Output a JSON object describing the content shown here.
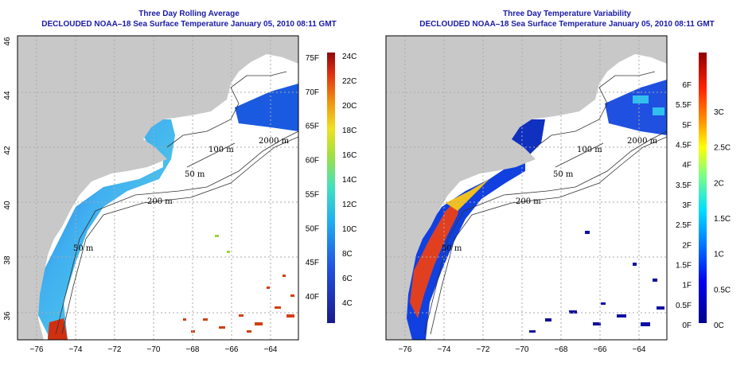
{
  "panels": [
    {
      "title_line1": "Three Day Rolling Average",
      "title_line2": "DECLOUDED NOAA–18 Sea Surface Temperature January 05, 2010 08:11 GMT",
      "colorbar_inner_labels": [
        "75F",
        "70F",
        "65F",
        "60F",
        "55F",
        "50F",
        "45F",
        "40F"
      ],
      "colorbar_outer_labels": [
        "24C",
        "22C",
        "20C",
        "18C",
        "16C",
        "14C",
        "12C",
        "10C",
        "8C",
        "6C",
        "4C"
      ]
    },
    {
      "title_line1": "Three Day Temperature Variability",
      "title_line2": "DECLOUDED NOAA–18 Sea Surface Temperature January 05, 2010 08:11 GMT",
      "colorbar_inner_labels": [
        "6F",
        "5.5F",
        "5F",
        "4.5F",
        "4F",
        "3.5F",
        "3F",
        "2.5F",
        "2F",
        "1.5F",
        "1F",
        "0.5F",
        "0F"
      ],
      "colorbar_outer_labels": [
        "3C",
        "2.5C",
        "2C",
        "1.5C",
        "1C",
        "0.5C",
        "0C"
      ]
    }
  ],
  "axes": {
    "lon_ticks": [
      "−76",
      "−74",
      "−72",
      "−70",
      "−68",
      "−66",
      "−64"
    ],
    "lat_ticks": [
      "36",
      "38",
      "40",
      "42",
      "44",
      "46"
    ]
  },
  "contour_labels": [
    "100 m",
    "2000 m",
    "50 m",
    "200 m",
    "50 m"
  ],
  "colors": {
    "title": "#1a1aa8",
    "land": "#c8c8c8",
    "grid": "#aaaaaa"
  }
}
